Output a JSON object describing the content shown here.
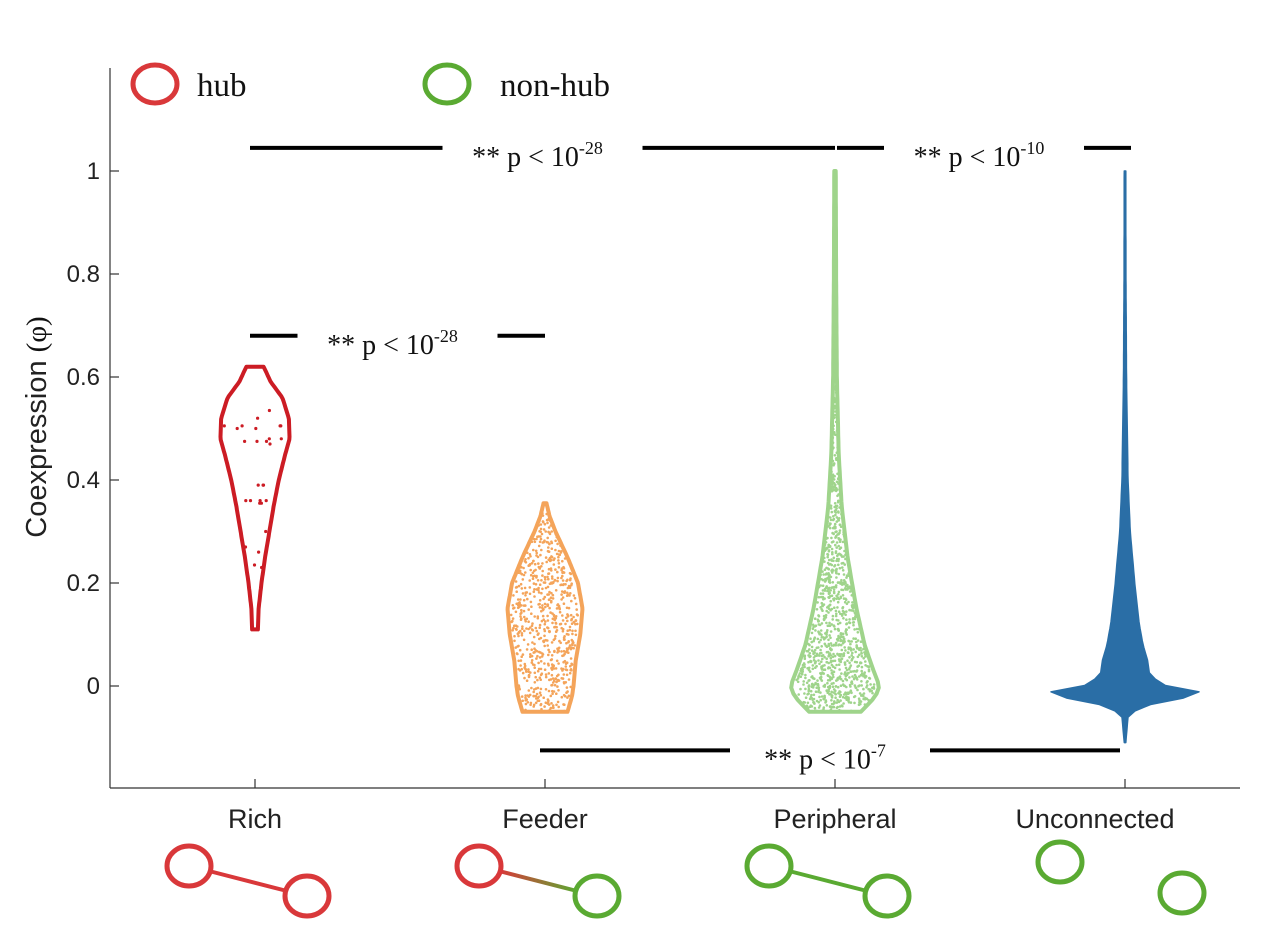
{
  "chart_data": {
    "type": "violin",
    "title": "",
    "xlabel": "",
    "ylabel": "Coexpression",
    "ylabel_symbol": "(φ)",
    "ylim": [
      -0.2,
      1.15
    ],
    "yticks": [
      0,
      0.2,
      0.4,
      0.6,
      0.8,
      1
    ],
    "ytick_labels": [
      "0",
      "0.2",
      "0.4",
      "0.6",
      "0.8",
      "1"
    ],
    "grid": false,
    "legend": [
      {
        "label": "hub",
        "color": "#d9383a"
      },
      {
        "label": "non-hub",
        "color": "#5aaa32"
      }
    ],
    "categories": [
      "Rich",
      "Feeder",
      "Peripheral",
      "Unconnected"
    ],
    "series": [
      {
        "category": "Rich",
        "color": "#cc1c24",
        "fill": "none",
        "min": 0.11,
        "max": 0.62,
        "profile": [
          [
            0.11,
            0.04
          ],
          [
            0.15,
            0.05
          ],
          [
            0.2,
            0.09
          ],
          [
            0.25,
            0.14
          ],
          [
            0.3,
            0.2
          ],
          [
            0.35,
            0.26
          ],
          [
            0.4,
            0.33
          ],
          [
            0.45,
            0.42
          ],
          [
            0.48,
            0.48
          ],
          [
            0.52,
            0.47
          ],
          [
            0.56,
            0.38
          ],
          [
            0.59,
            0.22
          ],
          [
            0.62,
            0.12
          ]
        ],
        "points": [
          0.505,
          0.505,
          0.505,
          0.5,
          0.48,
          0.475,
          0.475,
          0.47,
          0.535,
          0.52,
          0.355,
          0.355,
          0.36,
          0.36,
          0.36,
          0.39,
          0.39,
          0.27,
          0.26,
          0.235,
          0.23,
          0.62,
          0.62,
          0.5,
          0.48,
          0.475,
          0.36,
          0.39,
          0.3,
          0.505
        ]
      },
      {
        "category": "Feeder",
        "color": "#f4a45a",
        "fill": "none",
        "min": -0.05,
        "max": 0.355,
        "profile": [
          [
            -0.05,
            0.3
          ],
          [
            -0.02,
            0.36
          ],
          [
            0.0,
            0.38
          ],
          [
            0.05,
            0.41
          ],
          [
            0.1,
            0.47
          ],
          [
            0.15,
            0.5
          ],
          [
            0.2,
            0.44
          ],
          [
            0.25,
            0.3
          ],
          [
            0.3,
            0.14
          ],
          [
            0.33,
            0.06
          ],
          [
            0.355,
            0.02
          ]
        ],
        "n_points": 700
      },
      {
        "category": "Peripheral",
        "color": "#9fd48b",
        "fill": "none",
        "min": -0.05,
        "max": 1.0,
        "profile": [
          [
            -0.05,
            0.35
          ],
          [
            -0.02,
            0.55
          ],
          [
            0.0,
            0.6
          ],
          [
            0.03,
            0.52
          ],
          [
            0.08,
            0.4
          ],
          [
            0.15,
            0.29
          ],
          [
            0.25,
            0.17
          ],
          [
            0.35,
            0.09
          ],
          [
            0.45,
            0.05
          ],
          [
            0.6,
            0.025
          ],
          [
            0.8,
            0.015
          ],
          [
            1.0,
            0.01
          ]
        ],
        "n_points": 1100
      },
      {
        "category": "Unconnected",
        "color": "#2a6ea6",
        "fill": "solid",
        "min": -0.11,
        "max": 1.0,
        "profile": [
          [
            -0.11,
            0.01
          ],
          [
            -0.06,
            0.04
          ],
          [
            -0.04,
            0.2
          ],
          [
            -0.02,
            0.9
          ],
          [
            -0.01,
            1.0
          ],
          [
            0.0,
            0.55
          ],
          [
            0.02,
            0.33
          ],
          [
            0.05,
            0.3
          ],
          [
            0.08,
            0.24
          ],
          [
            0.12,
            0.19
          ],
          [
            0.2,
            0.13
          ],
          [
            0.3,
            0.07
          ],
          [
            0.4,
            0.04
          ],
          [
            0.6,
            0.02
          ],
          [
            0.8,
            0.012
          ],
          [
            1.0,
            0.01
          ]
        ]
      }
    ],
    "annotations": [
      {
        "text": "** p < 10",
        "exp": "-28",
        "from": "Rich",
        "to": "Feeder",
        "y": 0.68
      },
      {
        "text": "** p < 10",
        "exp": "-28",
        "from": "Rich",
        "to": "Peripheral",
        "y": 1.045
      },
      {
        "text": "** p < 10",
        "exp": "-10",
        "from": "Peripheral",
        "to": "Unconnected",
        "y": 1.045
      },
      {
        "text": "** p < 10",
        "exp": "-7",
        "from": "Feeder",
        "to": "Unconnected",
        "y": -0.125
      }
    ],
    "edge_icons": [
      {
        "category": "Rich",
        "a": "hub",
        "b": "hub",
        "connected": true
      },
      {
        "category": "Feeder",
        "a": "hub",
        "b": "non-hub",
        "connected": true
      },
      {
        "category": "Peripheral",
        "a": "non-hub",
        "b": "non-hub",
        "connected": true
      },
      {
        "category": "Unconnected",
        "a": "non-hub",
        "b": "non-hub",
        "connected": false
      }
    ]
  }
}
